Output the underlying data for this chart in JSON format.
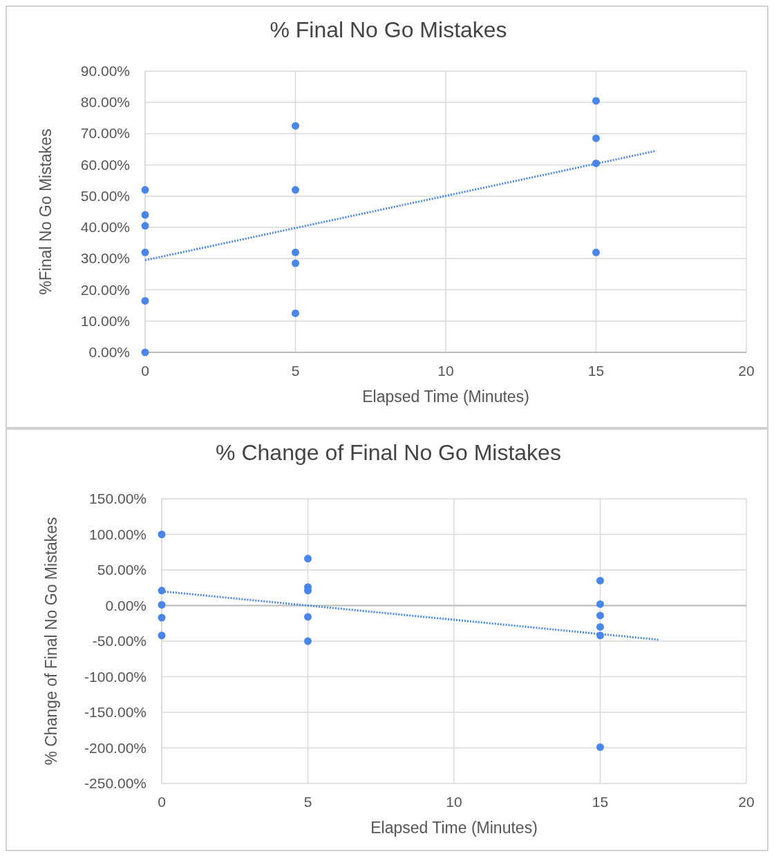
{
  "chart_data": [
    {
      "type": "scatter",
      "title": "% Final No Go Mistakes",
      "xlabel": "Elapsed Time (Minutes)",
      "ylabel": "%Final No Go Mistakes",
      "xlim": [
        0,
        20
      ],
      "xticks": [
        0,
        5,
        10,
        15,
        20
      ],
      "ylim": [
        0,
        90
      ],
      "yticks": [
        {
          "value": 0,
          "label": "0.00%"
        },
        {
          "value": 10,
          "label": "10.00%"
        },
        {
          "value": 20,
          "label": "20.00%"
        },
        {
          "value": 30,
          "label": "30.00%"
        },
        {
          "value": 40,
          "label": "40.00%"
        },
        {
          "value": 50,
          "label": "50.00%"
        },
        {
          "value": 60,
          "label": "60.00%"
        },
        {
          "value": 70,
          "label": "70.00%"
        },
        {
          "value": 80,
          "label": "80.00%"
        },
        {
          "value": 90,
          "label": "90.00%"
        }
      ],
      "grid": true,
      "marker": "circle",
      "series": [
        {
          "type": "scatter",
          "color": "#4a86e8",
          "x": [
            0,
            0,
            0,
            0,
            0,
            0,
            5,
            5,
            5,
            5,
            5,
            15,
            15,
            15,
            15
          ],
          "values": [
            52,
            44,
            40.5,
            32,
            16.5,
            0,
            72.5,
            52,
            32,
            28.5,
            12.5,
            80.5,
            68.5,
            60.5,
            32
          ]
        },
        {
          "type": "line",
          "color": "#4a86e8",
          "line_style": "dotted",
          "marker": "none",
          "x": [
            0,
            17
          ],
          "values": [
            29.5,
            64.5
          ]
        }
      ]
    },
    {
      "type": "scatter",
      "title": "% Change of Final No Go Mistakes",
      "xlabel": "Elapsed Time (Minutes)",
      "ylabel": "% Change of Final No Go Mistakes",
      "xlim": [
        0,
        20
      ],
      "xticks": [
        0,
        5,
        10,
        15,
        20
      ],
      "ylim": [
        -250,
        150
      ],
      "yticks": [
        {
          "value": -250,
          "label": "-250.00%"
        },
        {
          "value": -200,
          "label": "-200.00%"
        },
        {
          "value": -150,
          "label": "-150.00%"
        },
        {
          "value": -100,
          "label": "-100.00%"
        },
        {
          "value": -50,
          "label": "-50.00%"
        },
        {
          "value": 0,
          "label": "0.00%"
        },
        {
          "value": 50,
          "label": "50.00%"
        },
        {
          "value": 100,
          "label": "100.00%"
        },
        {
          "value": 150,
          "label": "150.00%"
        }
      ],
      "grid": true,
      "marker": "circle",
      "series": [
        {
          "type": "scatter",
          "color": "#4a86e8",
          "x": [
            0,
            0,
            0,
            0,
            0,
            5,
            5,
            5,
            5,
            5,
            15,
            15,
            15,
            15,
            15,
            15
          ],
          "values": [
            100,
            21,
            1,
            -17,
            -42,
            66,
            26,
            21,
            -16,
            -50,
            35,
            2,
            -14,
            -30,
            -42,
            -199
          ]
        },
        {
          "type": "line",
          "color": "#4a86e8",
          "line_style": "dotted",
          "marker": "none",
          "x": [
            0,
            17
          ],
          "values": [
            20,
            -48
          ]
        }
      ]
    }
  ]
}
